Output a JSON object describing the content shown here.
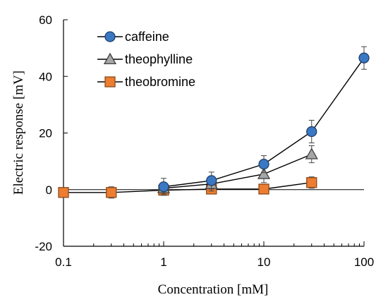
{
  "chart_data": {
    "type": "scatter",
    "title": "",
    "xlabel": "Concentration [mM]",
    "ylabel": "Electric response [mV]",
    "x_scale": "log",
    "xlim": [
      0.1,
      100
    ],
    "ylim": [
      -20,
      60
    ],
    "x_ticks": [
      "0.1",
      "1",
      "10",
      "100"
    ],
    "y_ticks": [
      "-20",
      "0",
      "20",
      "40",
      "60"
    ],
    "grid": false,
    "legend_position": "top-left",
    "series": [
      {
        "name": "caffeine",
        "marker": "circle",
        "color": "#3a78c4",
        "connected": true,
        "x": [
          1,
          3,
          10,
          30,
          100
        ],
        "y": [
          1.0,
          3.2,
          9.0,
          20.5,
          46.5
        ],
        "err": [
          3.0,
          3.0,
          3.0,
          4.0,
          4.0
        ]
      },
      {
        "name": "theophylline",
        "marker": "triangle",
        "color": "#a6a6a6",
        "connected": true,
        "x": [
          1,
          3,
          10,
          30
        ],
        "y": [
          0.5,
          2.0,
          5.5,
          12.5
        ],
        "err": [
          2.0,
          2.5,
          3.0,
          3.0
        ]
      },
      {
        "name": "theobromine",
        "marker": "square",
        "color": "#ed7d31",
        "connected": true,
        "x": [
          0.1,
          0.3,
          1,
          3,
          10,
          30
        ],
        "y": [
          -1.0,
          -1.0,
          -0.2,
          0.2,
          0.2,
          2.5
        ],
        "err": [
          1.5,
          2.0,
          1.5,
          1.5,
          1.5,
          2.0
        ]
      }
    ]
  }
}
